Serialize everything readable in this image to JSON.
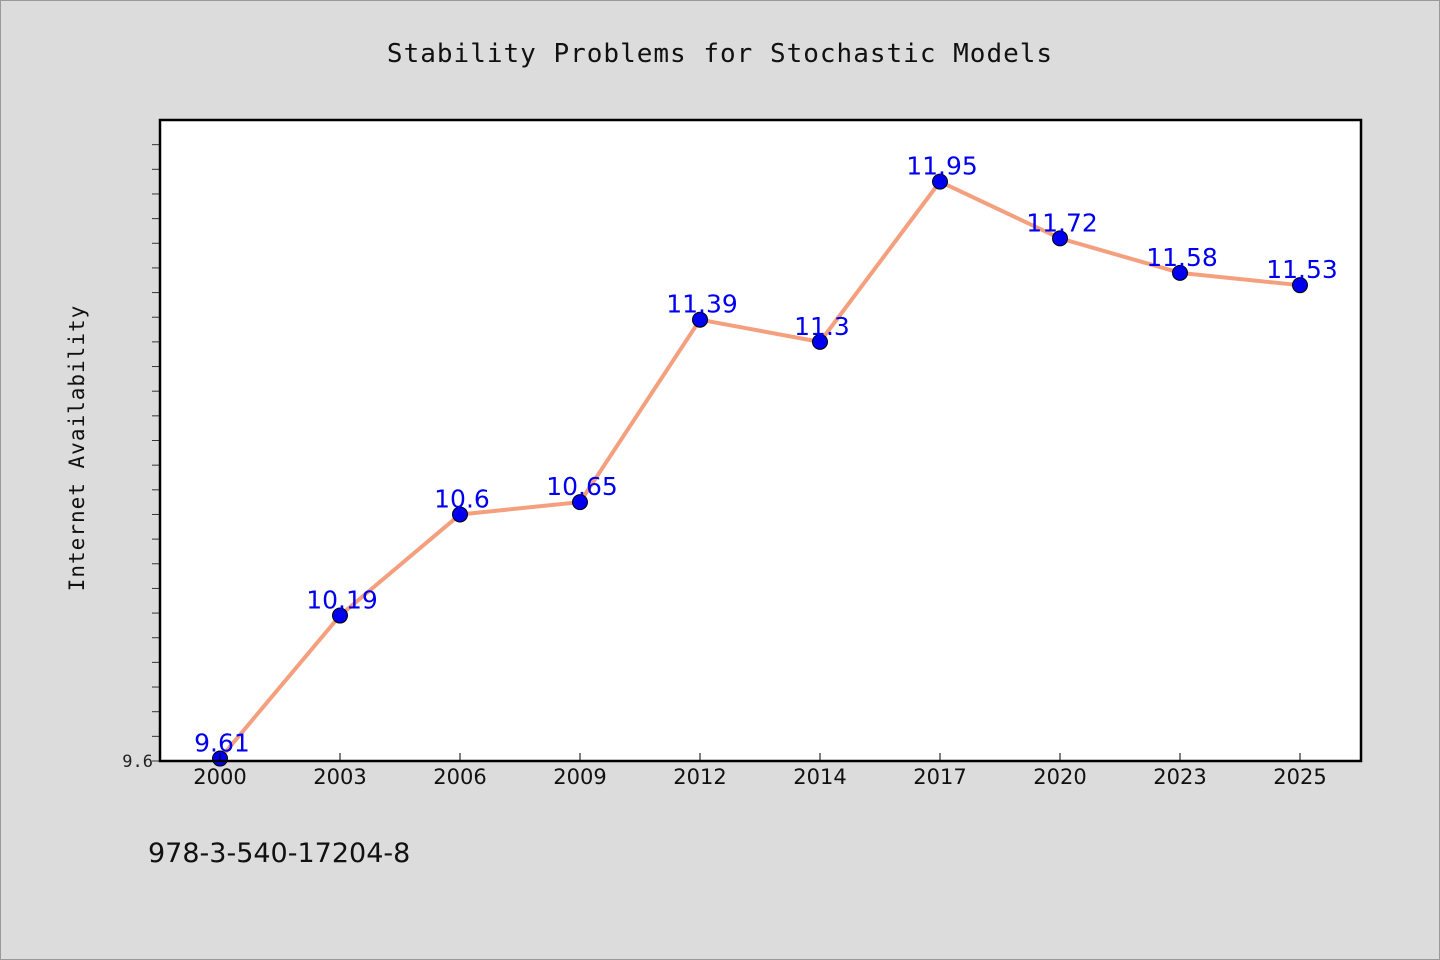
{
  "chart_data": {
    "type": "line",
    "title": "Stability Problems for Stochastic Models",
    "ylabel": "Internet Availability",
    "xlabel": "",
    "categories": [
      "2000",
      "2003",
      "2006",
      "2009",
      "2012",
      "2014",
      "2017",
      "2020",
      "2023",
      "2025"
    ],
    "series": [
      {
        "values": [
          9.61,
          10.19,
          10.6,
          10.65,
          11.39,
          11.3,
          11.95,
          11.72,
          11.58,
          11.53
        ],
        "labels": [
          "9.61",
          "10.19",
          "10.6",
          "10.65",
          "11.39",
          "11.3",
          "11.95",
          "11.72",
          "11.58",
          "11.53"
        ]
      }
    ],
    "ylim": [
      9.6,
      12.2
    ],
    "y_tick_labels": [
      "9.6"
    ],
    "grid": false,
    "colors": {
      "line": "#f4a07e",
      "marker": "#0000ee",
      "data_label": "#0000ee",
      "plot_bg": "#ffffff",
      "page_bg": "#dcdcdc"
    }
  },
  "footer": {
    "text": "978-3-540-17204-8"
  }
}
